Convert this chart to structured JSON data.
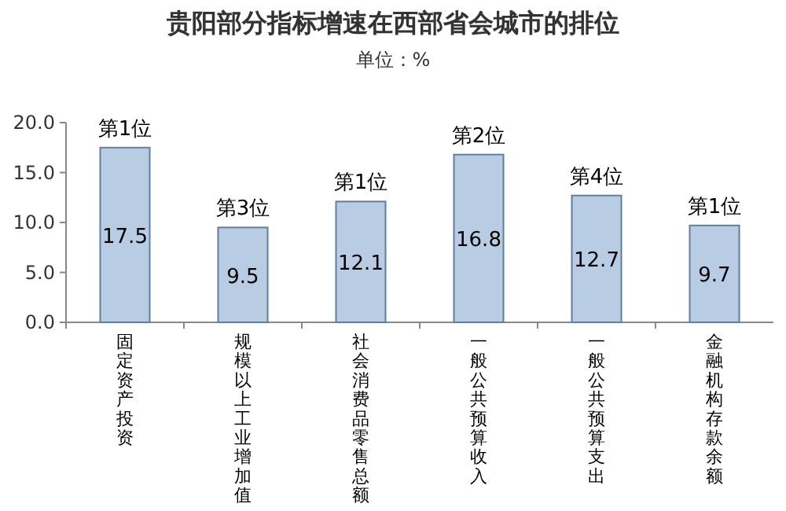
{
  "chart_data": {
    "type": "bar",
    "title": "贵阳部分指标增速在西部省会城市的排位",
    "subtitle": "单位：%",
    "categories": [
      "固定资产投资",
      "规模以上工业增加值",
      "社会消费品零售总额",
      "一般公共预算收入",
      "一般公共预算支出",
      "金融机构存款余额"
    ],
    "values": [
      17.5,
      9.5,
      12.1,
      16.8,
      12.7,
      9.7
    ],
    "color": "#b8cce4",
    "data_labels": true,
    "ylim": [
      0,
      20
    ],
    "yticks": [
      {
        "value": 0,
        "label": "0.0"
      },
      {
        "value": 5,
        "label": "5.0"
      },
      {
        "value": 10,
        "label": "10.0"
      },
      {
        "value": 15,
        "label": "15.0"
      },
      {
        "value": 20,
        "label": "20.0"
      }
    ],
    "annotations": [
      {
        "text": "第1位",
        "x": "固定资产投资",
        "y": 17.5
      },
      {
        "text": "第3位",
        "x": "规模以上工业增加值",
        "y": 9.5
      },
      {
        "text": "第1位",
        "x": "社会消费品零售总额",
        "y": 12.1
      },
      {
        "text": "第2位",
        "x": "一般公共预算收入",
        "y": 16.8
      },
      {
        "text": "第4位",
        "x": "一般公共预算支出",
        "y": 12.7
      },
      {
        "text": "第1位",
        "x": "金融机构存款余额",
        "y": 9.7
      }
    ]
  }
}
